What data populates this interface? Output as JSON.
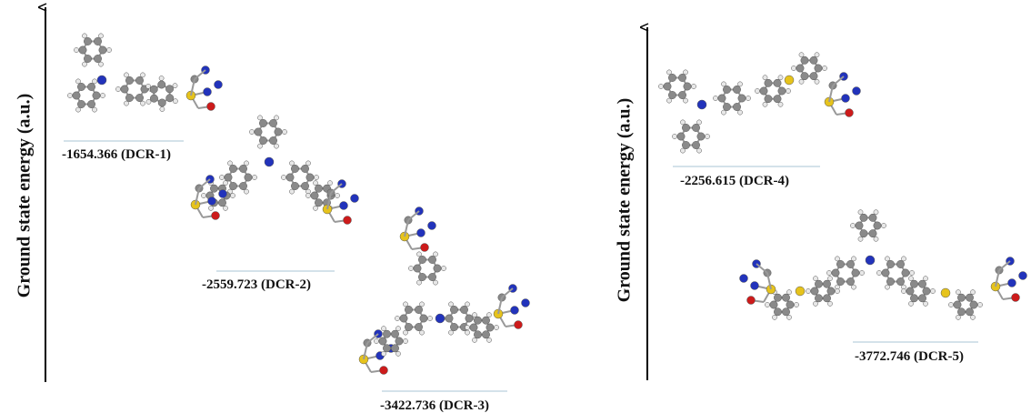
{
  "panels": [
    {
      "axis_label": "Ground state energy (a.u.)",
      "levels": [
        {
          "label": "-1654.366 (DCR-1)"
        },
        {
          "label": "-2559.723 (DCR-2)"
        },
        {
          "label": "-3422.736 (DCR-3)"
        }
      ]
    },
    {
      "axis_label": "Ground state energy (a.u.)",
      "levels": [
        {
          "label": "-2256.615 (DCR-4)"
        },
        {
          "label": "-3772.746 (DCR-5)"
        }
      ]
    }
  ]
}
